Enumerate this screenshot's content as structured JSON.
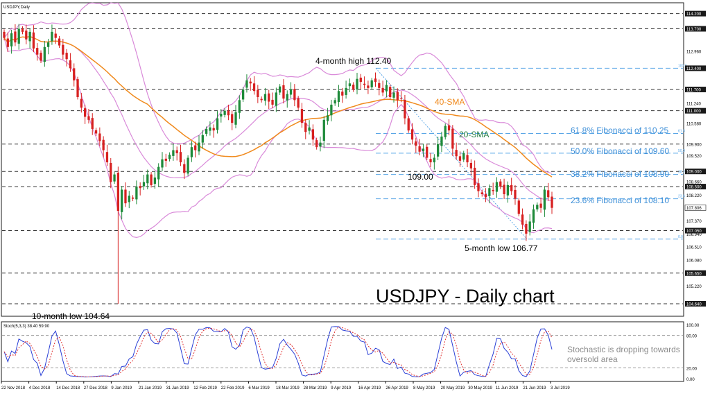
{
  "window": {
    "symbol_label": "USDJPY,Daily",
    "stoch_label": "Stoch(5,3,3) 38.40 59.90"
  },
  "main": {
    "title": "USDJPY - Daily chart",
    "annotations": {
      "high4m": "4-month high 112.40",
      "sma40": "40-SMA",
      "sma20": "20-SMA",
      "low109": "109.00",
      "low5m": "5-month low 106.77",
      "low10m": "10-month low 104.64",
      "stoch_note_1": "Stochastic is dropping towards",
      "stoch_note_2": "oversold area"
    },
    "fib_labels": [
      "61.8% Fibonacci of 110.25",
      "50.0% Fibonacci of 109.60",
      "38.2% Fibonacci of 108.90",
      "23.6% Fibonacci of 108.10"
    ],
    "fib_small": [
      "100.0",
      "61.8",
      "50.0",
      "38.2",
      "23.6",
      "0.0"
    ],
    "badge_price": "107.806"
  },
  "chart_data": {
    "type": "candlestick",
    "symbol": "USDJPY",
    "timeframe": "Daily",
    "ylim": [
      104.32,
      114.42
    ],
    "price_ticks": [
      "114.200",
      "113.700",
      "112.960",
      "112.400",
      "111.700",
      "111.240",
      "111.000",
      "110.580",
      "109.900",
      "109.520",
      "109.000",
      "108.660",
      "108.500",
      "108.220",
      "107.806",
      "107.370",
      "107.050",
      "106.940",
      "106.510",
      "106.080",
      "105.650",
      "105.220",
      "104.640"
    ],
    "highlighted_ticks": [
      "114.200",
      "113.700",
      "112.400",
      "111.700",
      "111.000",
      "109.000",
      "108.500",
      "107.050",
      "105.650",
      "104.640"
    ],
    "current_price": 107.806,
    "horizontal_levels": [
      114.2,
      113.7,
      111.7,
      111.0,
      109.9,
      109.0,
      108.5,
      107.05,
      105.65,
      104.64
    ],
    "fibonacci_levels": [
      {
        "pct": "100.0",
        "price": 112.4
      },
      {
        "pct": "61.8",
        "price": 110.25
      },
      {
        "pct": "50.0",
        "price": 109.6
      },
      {
        "pct": "38.2",
        "price": 108.9
      },
      {
        "pct": "23.6",
        "price": 108.1
      },
      {
        "pct": "0.0",
        "price": 106.77
      }
    ],
    "x_labels": [
      "22 Nov 2018",
      "4 Dec 2018",
      "14 Dec 2018",
      "27 Dec 2018",
      "9 Jan 2019",
      "21 Jan 2019",
      "31 Jan 2019",
      "12 Feb 2019",
      "22 Feb 2019",
      "6 Mar 2019",
      "18 Mar 2019",
      "28 Mar 2019",
      "9 Apr 2019",
      "16 Apr 2019",
      "26 Apr 2019",
      "8 May 2019",
      "20 May 2019",
      "30 May 2019",
      "11 Jun 2019",
      "21 Jun 2019",
      "3 Jul 2019"
    ],
    "closes": [
      113.4,
      113.1,
      113.55,
      113.25,
      113.7,
      113.6,
      113.35,
      113.6,
      113.05,
      112.85,
      112.65,
      113.1,
      113.25,
      113.6,
      113.4,
      113.15,
      112.85,
      112.7,
      112.4,
      112.0,
      111.45,
      111.1,
      110.8,
      110.7,
      110.4,
      110.25,
      110.0,
      109.7,
      109.3,
      108.65,
      108.9,
      107.7,
      108.4,
      107.95,
      108.2,
      108.1,
      108.5,
      108.45,
      108.65,
      108.9,
      108.55,
      108.8,
      109.15,
      109.4,
      109.35,
      109.55,
      109.7,
      109.6,
      109.3,
      108.95,
      109.45,
      109.8,
      109.7,
      109.95,
      110.2,
      110.4,
      110.45,
      110.35,
      110.75,
      110.9,
      111.0,
      110.85,
      110.6,
      110.95,
      111.35,
      111.7,
      112.0,
      111.9,
      111.65,
      111.45,
      111.35,
      111.55,
      111.3,
      111.2,
      111.6,
      111.8,
      111.4,
      111.55,
      111.7,
      111.35,
      111.1,
      110.6,
      110.3,
      110.45,
      110.05,
      109.8,
      109.95,
      110.7,
      110.85,
      111.2,
      111.35,
      111.65,
      111.5,
      111.75,
      111.9,
      111.7,
      112.05,
      111.95,
      111.85,
      111.75,
      112.0,
      111.95,
      111.75,
      111.6,
      111.85,
      111.45,
      111.6,
      111.35,
      111.4,
      110.75,
      110.35,
      110.05,
      109.85,
      109.65,
      109.75,
      109.45,
      109.3,
      109.45,
      109.9,
      110.15,
      110.5,
      110.35,
      109.75,
      109.5,
      109.35,
      109.6,
      109.3,
      109.1,
      108.55,
      108.35,
      108.25,
      108.15,
      108.45,
      108.35,
      108.65,
      108.5,
      108.25,
      108.55,
      108.35,
      108.1,
      107.6,
      107.25,
      106.95,
      107.35,
      107.75,
      107.9,
      107.8,
      108.4,
      108.15,
      107.8
    ]
  }
}
